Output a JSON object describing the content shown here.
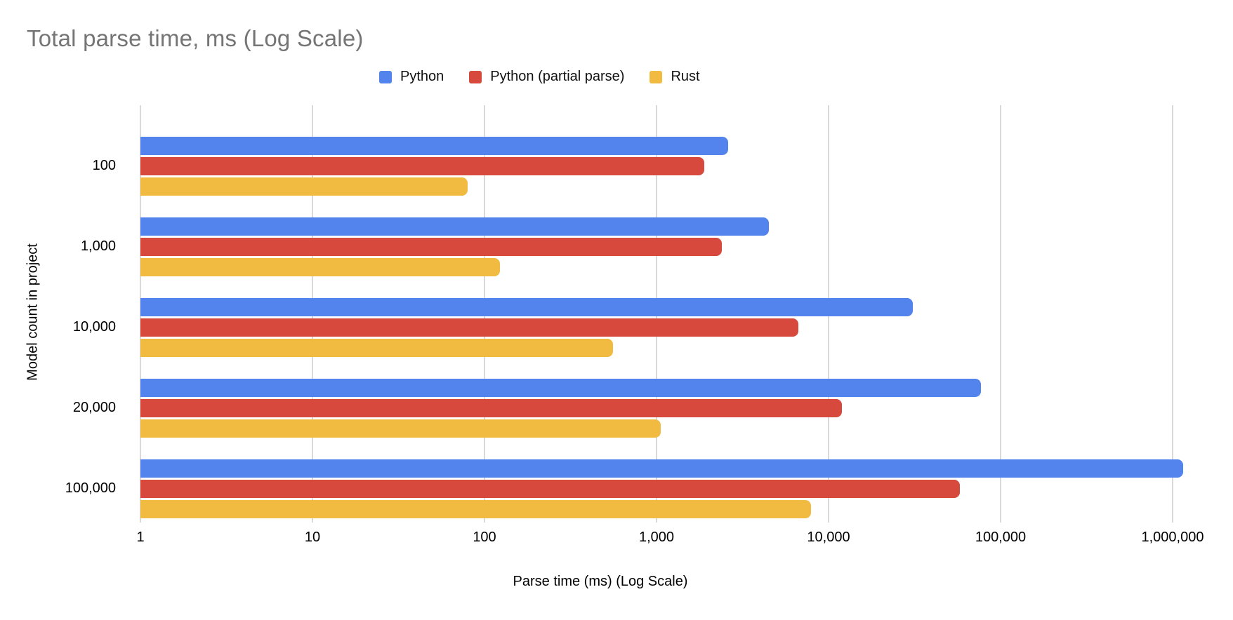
{
  "title": "Total parse time, ms (Log Scale)",
  "colors": {
    "title_text": "#757575",
    "axis_text": "#000000",
    "gridline": "#d9d9d9",
    "background": "#ffffff",
    "python_blue": "#5383EC",
    "python_partial_red": "#D7493D",
    "rust_yellow": "#F1BB41"
  },
  "chart_data": {
    "type": "bar",
    "orientation": "horizontal",
    "x_scale": "log",
    "title": "Total parse time, ms (Log Scale)",
    "xlabel": "Parse time (ms) (Log Scale)",
    "ylabel": "Model count in project",
    "legend_position": "top",
    "grid": true,
    "xlim": [
      1,
      1000000
    ],
    "categories": [
      "100",
      "1,000",
      "10,000",
      "20,000",
      "100,000"
    ],
    "series": [
      {
        "name": "Python",
        "color": "#5383EC",
        "values": [
          2600,
          4500,
          31000,
          77000,
          1150000
        ]
      },
      {
        "name": "Python (partial parse)",
        "color": "#D7493D",
        "values": [
          1900,
          2400,
          6700,
          12000,
          58000
        ]
      },
      {
        "name": "Rust",
        "color": "#F1BB41",
        "values": [
          80,
          123,
          560,
          1060,
          7900
        ]
      }
    ],
    "xticks": [
      {
        "value": 1,
        "label": "1"
      },
      {
        "value": 10,
        "label": "10"
      },
      {
        "value": 100,
        "label": "100"
      },
      {
        "value": 1000,
        "label": "1,000"
      },
      {
        "value": 10000,
        "label": "10,000"
      },
      {
        "value": 100000,
        "label": "100,000"
      },
      {
        "value": 1000000,
        "label": "1,000,000"
      }
    ]
  }
}
